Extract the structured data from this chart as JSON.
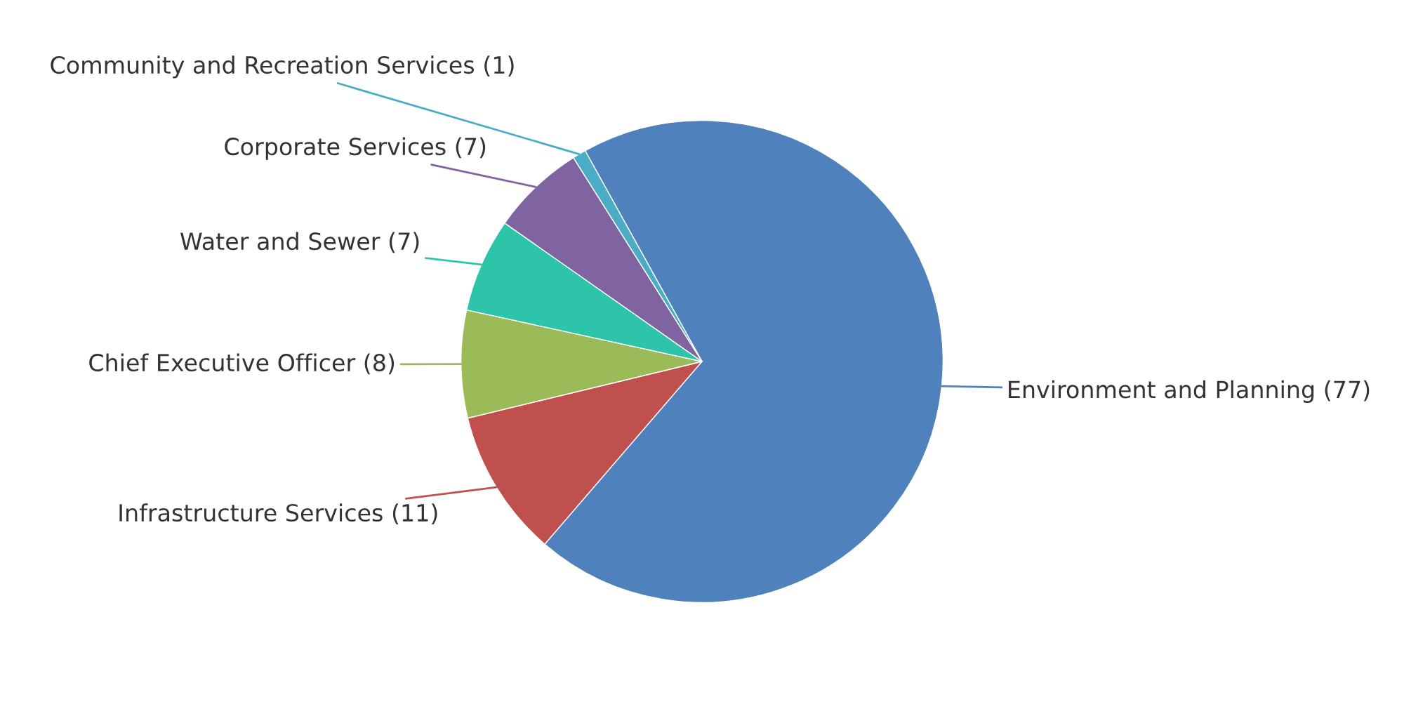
{
  "chart_data": {
    "type": "pie",
    "categories": [
      "Environment and Planning",
      "Infrastructure Services",
      "Chief Executive Officer",
      "Water and Sewer",
      "Corporate Services",
      "Community and Recreation Services"
    ],
    "values": [
      77,
      11,
      8,
      7,
      7,
      1
    ],
    "colors": [
      "#4f81bd",
      "#c0504d",
      "#9bbb59",
      "#2ec4aa",
      "#8064a2",
      "#4bacc6"
    ],
    "value_labels": [
      "(77)",
      "(11)",
      "(8)",
      "(7)",
      "(7)",
      "(1)"
    ]
  }
}
